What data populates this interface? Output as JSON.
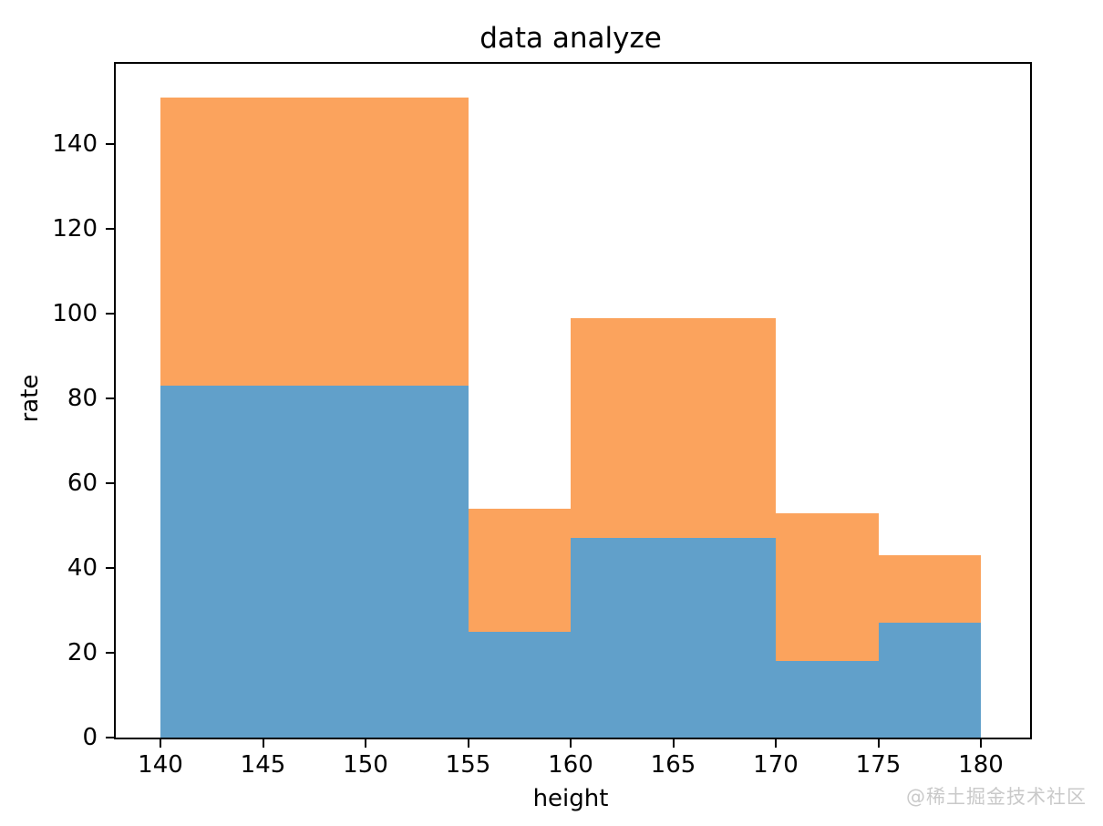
{
  "page": {
    "background": "#ffffff",
    "watermark": "@稀土掘金技术社区",
    "watermark_color": "#c9c9c9"
  },
  "chart_data": {
    "type": "bar",
    "subtype": "stacked-histogram",
    "title": "data analyze",
    "xlabel": "height",
    "ylabel": "rate",
    "bins": [
      [
        140,
        155
      ],
      [
        155,
        160
      ],
      [
        160,
        170
      ],
      [
        170,
        175
      ],
      [
        175,
        180
      ]
    ],
    "series": [
      {
        "name": "blue",
        "color": "#61A0CA",
        "values": [
          83,
          25,
          47,
          18,
          27
        ]
      },
      {
        "name": "orange",
        "color": "#FBA35D",
        "values": [
          68,
          29,
          52,
          35,
          16
        ]
      }
    ],
    "stack_totals": [
      151,
      54,
      99,
      53,
      43
    ],
    "xticks": [
      140,
      145,
      150,
      155,
      160,
      165,
      170,
      175,
      180
    ],
    "yticks": [
      0,
      20,
      40,
      60,
      80,
      100,
      120,
      140
    ],
    "xlim": [
      137.82,
      182.4
    ],
    "ylim": [
      0,
      158.9
    ],
    "grid": false,
    "legend": null,
    "axis_color": "#000000"
  }
}
